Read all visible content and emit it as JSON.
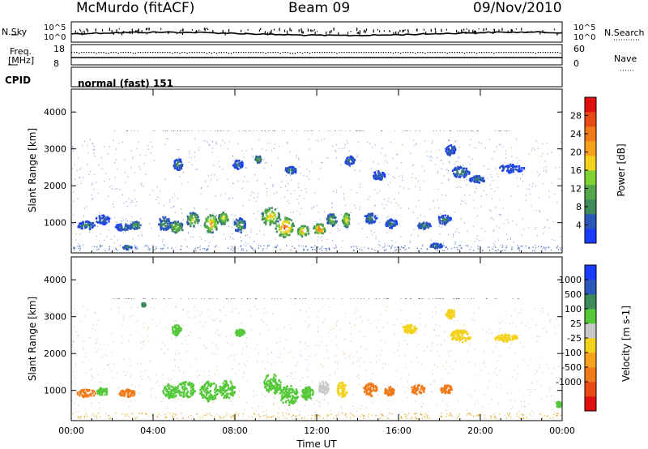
{
  "header": {
    "station": "McMurdo (fitACF)",
    "beam": "Beam 09",
    "date": "09/Nov/2010"
  },
  "top_panels": {
    "nsky_label": "N.Sky",
    "nsky_ticks": [
      "10^5",
      "10^0"
    ],
    "nsearch_label": "N.Search",
    "nsearch_ticks": [
      "10^5",
      "10^0"
    ],
    "freq_label_1": "Freq.",
    "freq_label_2": "[MHz]",
    "freq_ticks": [
      "18",
      "8"
    ],
    "nave_label": "Nave",
    "nave_ticks": [
      "60",
      "0"
    ],
    "cpid_label": "CPID",
    "cpid_value": "normal (fast) 151"
  },
  "colors": {
    "power_scale": [
      "#1a3cff",
      "#2b57b8",
      "#3f8a5a",
      "#55a64a",
      "#7fd232",
      "#f4d21c",
      "#f5a21e",
      "#f07a18",
      "#e84a14",
      "#e01010"
    ],
    "velocity_scale": [
      "#e01010",
      "#e84a14",
      "#f07a18",
      "#f5a21e",
      "#f4d21c",
      "#c8c8c8",
      "#55c83a",
      "#3f8a5a",
      "#2b57b8",
      "#1a3cff"
    ]
  },
  "chart_data": [
    {
      "type": "heatmap",
      "title": "Power",
      "xlabel": "",
      "ylabel": "Slant Range [km]",
      "colorbar_label": "Power [dB]",
      "colorbar_ticks": [
        "4",
        "8",
        "12",
        "16",
        "20",
        "24",
        "28"
      ],
      "colorbar_range": [
        0,
        32
      ],
      "x_ticks": [
        "00:00",
        "04:00",
        "08:00",
        "12:00",
        "16:00",
        "20:00",
        "00:00"
      ],
      "xlim": [
        0,
        24
      ],
      "y_ticks": [
        "1000",
        "2000",
        "3000",
        "4000"
      ],
      "ylim": [
        180,
        4620
      ],
      "blobs": [
        {
          "t": 0.7,
          "r": 950,
          "w": 0.9,
          "h": 220,
          "v": 9
        },
        {
          "t": 1.5,
          "r": 1100,
          "w": 0.7,
          "h": 250,
          "v": 7
        },
        {
          "t": 2.5,
          "r": 900,
          "w": 0.8,
          "h": 200,
          "v": 8
        },
        {
          "t": 3.1,
          "r": 950,
          "w": 0.5,
          "h": 220,
          "v": 12
        },
        {
          "t": 4.5,
          "r": 1000,
          "w": 0.6,
          "h": 400,
          "v": 10
        },
        {
          "t": 5.1,
          "r": 900,
          "w": 0.7,
          "h": 320,
          "v": 17
        },
        {
          "t": 5.9,
          "r": 1100,
          "w": 0.6,
          "h": 400,
          "v": 18
        },
        {
          "t": 6.8,
          "r": 1000,
          "w": 0.7,
          "h": 500,
          "v": 24
        },
        {
          "t": 7.4,
          "r": 1150,
          "w": 0.5,
          "h": 350,
          "v": 20
        },
        {
          "t": 8.2,
          "r": 950,
          "w": 0.6,
          "h": 400,
          "v": 12
        },
        {
          "t": 9.7,
          "r": 1200,
          "w": 0.9,
          "h": 500,
          "v": 22
        },
        {
          "t": 10.4,
          "r": 900,
          "w": 0.9,
          "h": 550,
          "v": 28
        },
        {
          "t": 11.3,
          "r": 800,
          "w": 0.6,
          "h": 300,
          "v": 24
        },
        {
          "t": 12.1,
          "r": 850,
          "w": 0.6,
          "h": 300,
          "v": 28
        },
        {
          "t": 12.7,
          "r": 1100,
          "w": 0.5,
          "h": 350,
          "v": 14
        },
        {
          "t": 13.4,
          "r": 1100,
          "w": 0.4,
          "h": 400,
          "v": 22
        },
        {
          "t": 14.6,
          "r": 1150,
          "w": 0.6,
          "h": 300,
          "v": 9
        },
        {
          "t": 15.6,
          "r": 1000,
          "w": 0.6,
          "h": 250,
          "v": 8
        },
        {
          "t": 17.2,
          "r": 950,
          "w": 0.7,
          "h": 200,
          "v": 10
        },
        {
          "t": 18.2,
          "r": 1100,
          "w": 0.7,
          "h": 250,
          "v": 8
        },
        {
          "t": 19.0,
          "r": 2400,
          "w": 0.9,
          "h": 300,
          "v": 9
        },
        {
          "t": 18.5,
          "r": 3000,
          "w": 0.5,
          "h": 300,
          "v": 7
        },
        {
          "t": 19.8,
          "r": 2200,
          "w": 0.8,
          "h": 200,
          "v": 8
        },
        {
          "t": 21.5,
          "r": 2500,
          "w": 1.2,
          "h": 250,
          "v": 6
        },
        {
          "t": 8.1,
          "r": 2600,
          "w": 0.5,
          "h": 250,
          "v": 8
        },
        {
          "t": 5.2,
          "r": 2600,
          "w": 0.5,
          "h": 300,
          "v": 9
        },
        {
          "t": 9.1,
          "r": 2750,
          "w": 0.3,
          "h": 200,
          "v": 14
        },
        {
          "t": 10.7,
          "r": 2450,
          "w": 0.6,
          "h": 200,
          "v": 9
        },
        {
          "t": 13.6,
          "r": 2700,
          "w": 0.5,
          "h": 250,
          "v": 8
        },
        {
          "t": 15.0,
          "r": 2300,
          "w": 0.6,
          "h": 250,
          "v": 7
        },
        {
          "t": 2.7,
          "r": 350,
          "w": 0.5,
          "h": 100,
          "v": 9
        },
        {
          "t": 17.8,
          "r": 400,
          "w": 0.7,
          "h": 120,
          "v": 9
        }
      ]
    },
    {
      "type": "heatmap",
      "title": "Velocity",
      "xlabel": "Time UT",
      "ylabel": "Slant Range [km]",
      "colorbar_label": "Velocity [m s-1]",
      "colorbar_ticks": [
        "1000",
        "500",
        "100",
        "25",
        "-25",
        "-100",
        "-500",
        "-1000"
      ],
      "x_ticks": [
        "00:00",
        "04:00",
        "08:00",
        "12:00",
        "16:00",
        "20:00",
        "00:00"
      ],
      "xlim": [
        0,
        24
      ],
      "y_ticks": [
        "1000",
        "2000",
        "3000",
        "4000"
      ],
      "ylim": [
        180,
        4620
      ],
      "blobs": [
        {
          "t": 0.7,
          "r": 950,
          "w": 0.9,
          "h": 220,
          "v": -150
        },
        {
          "t": 1.5,
          "r": 1000,
          "w": 0.6,
          "h": 200,
          "v": 200
        },
        {
          "t": 2.7,
          "r": 950,
          "w": 0.8,
          "h": 200,
          "v": -150
        },
        {
          "t": 4.8,
          "r": 1000,
          "w": 0.7,
          "h": 400,
          "v": 250
        },
        {
          "t": 5.6,
          "r": 1050,
          "w": 0.9,
          "h": 450,
          "v": 300
        },
        {
          "t": 6.7,
          "r": 1000,
          "w": 0.9,
          "h": 550,
          "v": 300
        },
        {
          "t": 7.6,
          "r": 1050,
          "w": 0.8,
          "h": 500,
          "v": 300
        },
        {
          "t": 9.8,
          "r": 1200,
          "w": 0.9,
          "h": 550,
          "v": 300
        },
        {
          "t": 10.6,
          "r": 900,
          "w": 0.9,
          "h": 550,
          "v": 300
        },
        {
          "t": 11.5,
          "r": 950,
          "w": 0.6,
          "h": 350,
          "v": 300
        },
        {
          "t": 12.3,
          "r": 1100,
          "w": 0.5,
          "h": 350,
          "v": 60
        },
        {
          "t": 13.2,
          "r": 1050,
          "w": 0.5,
          "h": 400,
          "v": 0
        },
        {
          "t": 14.6,
          "r": 1050,
          "w": 0.7,
          "h": 350,
          "v": -200
        },
        {
          "t": 15.5,
          "r": 1000,
          "w": 0.5,
          "h": 250,
          "v": -150
        },
        {
          "t": 16.9,
          "r": 1050,
          "w": 0.7,
          "h": 250,
          "v": -200
        },
        {
          "t": 18.3,
          "r": 1050,
          "w": 0.6,
          "h": 250,
          "v": -300
        },
        {
          "t": 19.0,
          "r": 2500,
          "w": 1.0,
          "h": 350,
          "v": 0
        },
        {
          "t": 18.5,
          "r": 3100,
          "w": 0.5,
          "h": 250,
          "v": 0
        },
        {
          "t": 16.5,
          "r": 2700,
          "w": 0.7,
          "h": 250,
          "v": 0
        },
        {
          "t": 21.2,
          "r": 2450,
          "w": 1.2,
          "h": 200,
          "v": 0
        },
        {
          "t": 8.2,
          "r": 2600,
          "w": 0.5,
          "h": 200,
          "v": 200
        },
        {
          "t": 5.1,
          "r": 2650,
          "w": 0.5,
          "h": 300,
          "v": 300
        },
        {
          "t": 23.8,
          "r": 650,
          "w": 0.3,
          "h": 150,
          "v": 300
        },
        {
          "t": 3.5,
          "r": 3350,
          "w": 0.2,
          "h": 100,
          "v": 600
        }
      ]
    }
  ]
}
